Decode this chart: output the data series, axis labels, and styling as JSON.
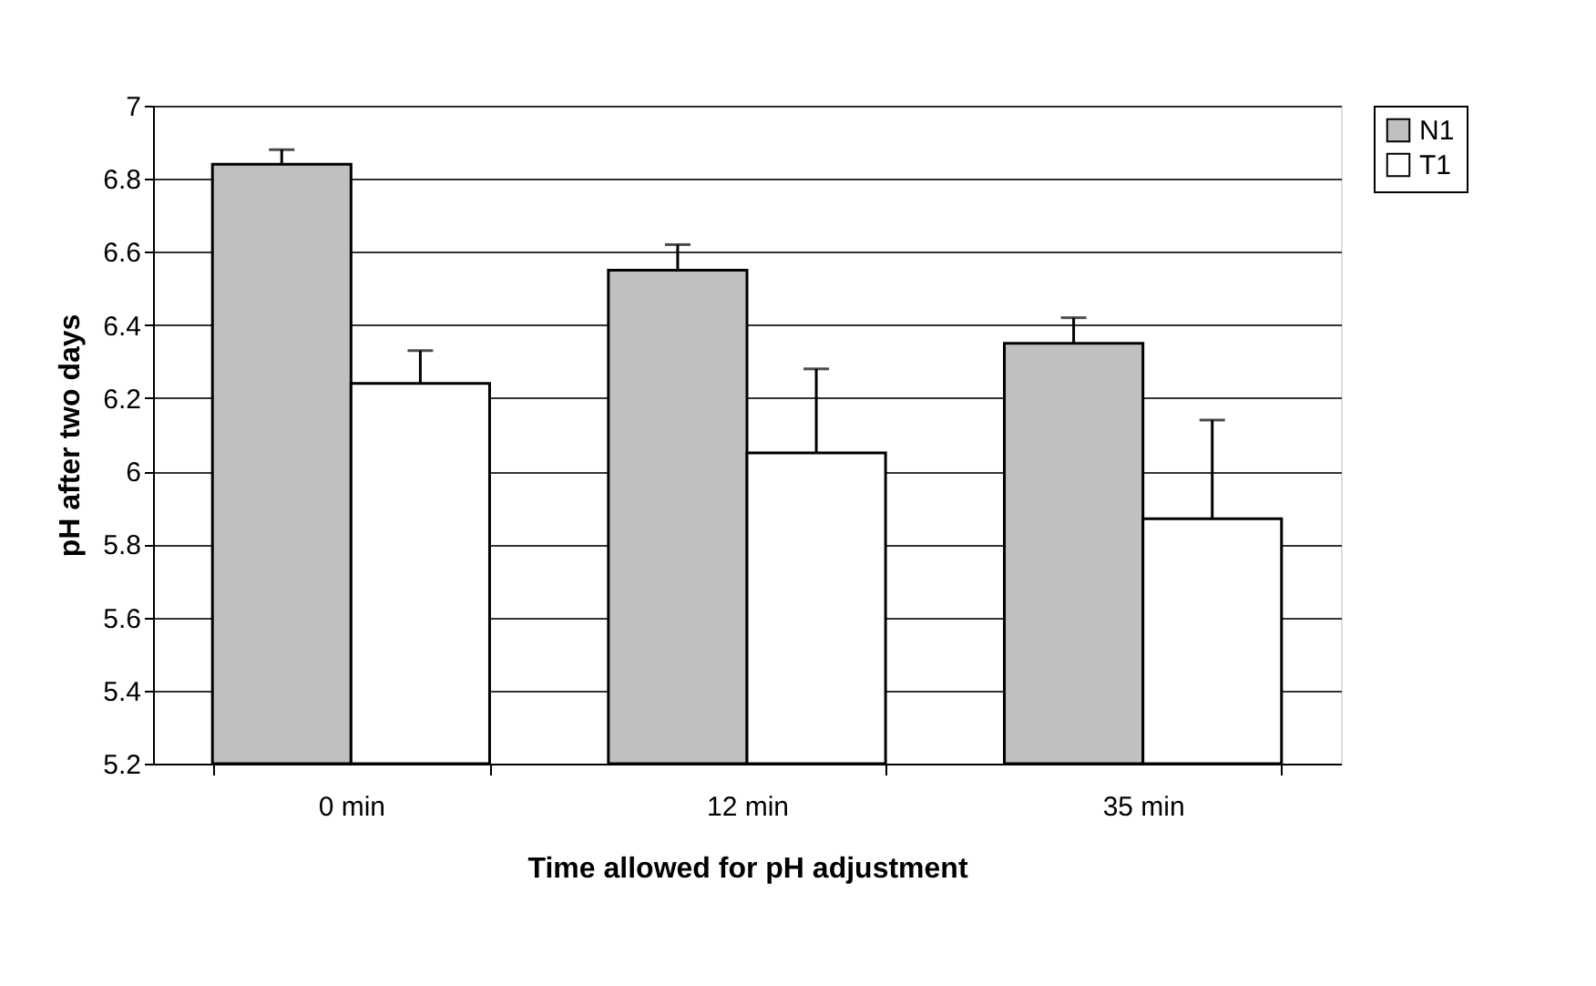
{
  "chart_data": {
    "type": "bar",
    "xlabel": "Time allowed for pH adjustment",
    "ylabel": "pH after two days",
    "categories": [
      "0 min",
      "12 min",
      "35 min"
    ],
    "series": [
      {
        "name": "N1",
        "color": "#c0c0c0",
        "values": [
          6.84,
          6.55,
          6.35
        ],
        "errors": [
          [
            6.84,
            6.88
          ],
          [
            6.55,
            6.62
          ],
          [
            6.35,
            6.42
          ]
        ]
      },
      {
        "name": "T1",
        "color": "#ffffff",
        "values": [
          6.24,
          6.05,
          5.87
        ],
        "errors": [
          [
            6.24,
            6.33
          ],
          [
            6.05,
            6.28
          ],
          [
            5.87,
            6.14
          ]
        ]
      }
    ],
    "ylim": [
      5.2,
      7
    ],
    "yticks": [
      5.2,
      5.4,
      5.6,
      5.8,
      6,
      6.2,
      6.4,
      6.6,
      6.8,
      7
    ],
    "grid": "y",
    "legend": "right"
  }
}
